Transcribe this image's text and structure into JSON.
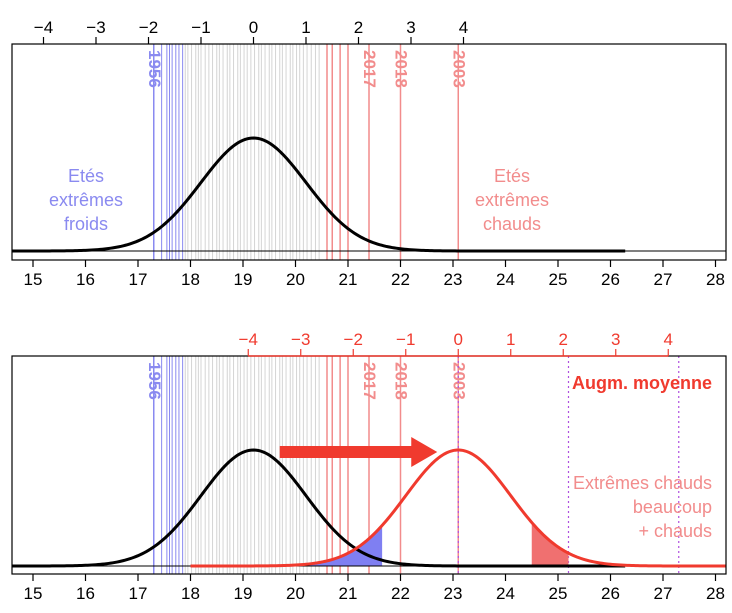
{
  "colors": {
    "blue": "#8a8af0",
    "blue_fill": "#7f7ff2",
    "pink": "#f28c8c",
    "red": "#f03a2e",
    "red_fill": "#f07070",
    "grey_lines": "#d4d4d4",
    "black": "#000000",
    "magenta_dotted": "#b04fe0"
  },
  "icons": [
    "right-arrow-icon"
  ],
  "chart_data": [
    {
      "type": "line",
      "panel": "top",
      "x_axis_bottom": {
        "ticks": [
          15,
          16,
          17,
          18,
          19,
          20,
          21,
          22,
          23,
          24,
          25,
          26,
          27,
          28
        ],
        "range": [
          14.6,
          28.2
        ]
      },
      "x_axis_top": {
        "ticks": [
          "−4",
          "−3",
          "−2",
          "−1",
          "0",
          "1",
          "2",
          "3",
          "4"
        ],
        "values": [
          -4,
          -3,
          -2,
          -1,
          0,
          1,
          2,
          3,
          4
        ],
        "mean": 19.2,
        "sd": 1.0
      },
      "series": [
        {
          "kind": "normal-curve",
          "mean": 19.2,
          "sd": 1.0,
          "x_range": [
            14.6,
            26.3
          ],
          "color": "#000000"
        }
      ],
      "blue_years": [
        17.3,
        17.45,
        17.55,
        17.6,
        17.65,
        17.72,
        17.78,
        17.85
      ],
      "grey_years": [
        17.9,
        17.95,
        18.02,
        18.1,
        18.15,
        18.2,
        18.28,
        18.35,
        18.42,
        18.5,
        18.55,
        18.62,
        18.7,
        18.75,
        18.82,
        18.9,
        18.95,
        19.02,
        19.08,
        19.15,
        19.22,
        19.3,
        19.35,
        19.42,
        19.5,
        19.55,
        19.62,
        19.7,
        19.75,
        19.82,
        19.9,
        19.95,
        20.02,
        20.08,
        20.15,
        20.22,
        20.3,
        20.38,
        20.45
      ],
      "red_years": [
        20.6,
        20.7,
        20.85,
        21.0
      ],
      "labeled_years": [
        {
          "label": "1956",
          "x": 17.3,
          "color": "blue"
        },
        {
          "label": "2017",
          "x": 21.4,
          "color": "pink"
        },
        {
          "label": "2018",
          "x": 22.0,
          "color": "pink"
        },
        {
          "label": "2003",
          "x": 23.1,
          "color": "pink"
        }
      ],
      "annotations": {
        "cold": [
          "Etés",
          "extrêmes",
          "froids"
        ],
        "hot": [
          "Etés",
          "extrêmes",
          "chauds"
        ]
      }
    },
    {
      "type": "line",
      "panel": "bottom",
      "x_axis_bottom": {
        "ticks": [
          15,
          16,
          17,
          18,
          19,
          20,
          21,
          22,
          23,
          24,
          25,
          26,
          27,
          28
        ],
        "range": [
          14.6,
          28.2
        ]
      },
      "x_axis_top": {
        "ticks": [
          "−4",
          "−3",
          "−2",
          "−1",
          "0",
          "1",
          "2",
          "3",
          "4"
        ],
        "values": [
          -4,
          -3,
          -2,
          -1,
          0,
          1,
          2,
          3,
          4
        ],
        "mean": 23.1,
        "sd": 1.0,
        "color": "red"
      },
      "series": [
        {
          "kind": "normal-curve",
          "mean": 19.2,
          "sd": 1.0,
          "x_range": [
            14.6,
            26.3
          ],
          "color": "#000000"
        },
        {
          "kind": "normal-curve",
          "mean": 23.1,
          "sd": 1.0,
          "x_range": [
            18.0,
            28.2
          ],
          "color": "#f03a2e"
        }
      ],
      "shaded": [
        {
          "under": "red-curve",
          "from": 18.0,
          "to": 21.65,
          "color": "blue_fill"
        },
        {
          "under": "red-curve",
          "from": 24.5,
          "to": 25.2,
          "color": "red_fill"
        }
      ],
      "dotted_lines": [
        23.1,
        25.2,
        27.3
      ],
      "labeled_years": [
        {
          "label": "1956",
          "x": 17.3,
          "color": "blue"
        },
        {
          "label": "2017",
          "x": 21.4,
          "color": "pink"
        },
        {
          "label": "2018",
          "x": 22.0,
          "color": "pink"
        },
        {
          "label": "2003",
          "x": 23.1,
          "color": "pink"
        }
      ],
      "arrow": {
        "from": 19.7,
        "to": 22.7
      },
      "annotations": {
        "title": "Augm. moyenne",
        "hot": [
          "Extrêmes chauds",
          "beaucoup",
          "+ chauds"
        ]
      }
    }
  ]
}
